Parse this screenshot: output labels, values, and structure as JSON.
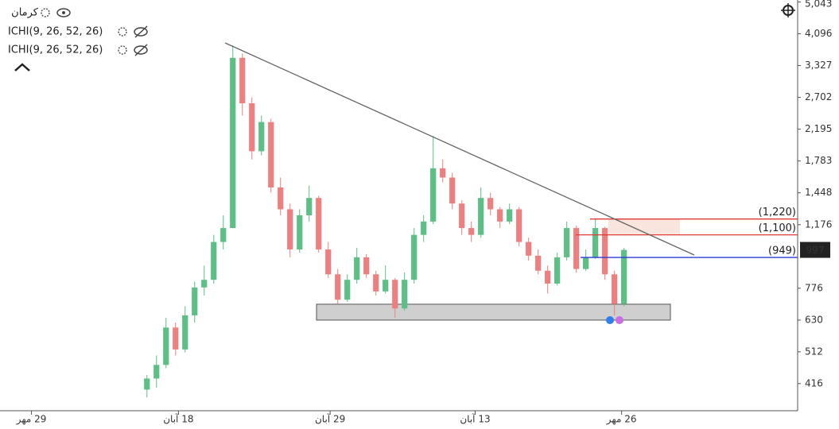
{
  "chart_data": {
    "type": "candlestick",
    "title": "کرمان",
    "indicators": [
      "ICHI(9, 26, 52, 26)",
      "ICHI(9, 26, 52, 26)"
    ],
    "log_scale": true,
    "up_color": "#5cbf85",
    "down_color": "#ef7f7f",
    "open": [
      400,
      430,
      470,
      600,
      520,
      650,
      780,
      820,
      1050,
      1150,
      3500,
      2600,
      1900,
      2300,
      1500,
      1300,
      1000,
      1250,
      1400,
      1000,
      850,
      720,
      820,
      950,
      850,
      760,
      820,
      680,
      820,
      1100,
      1200,
      1700,
      1600,
      1350,
      1150,
      1100,
      1400,
      1300,
      1200,
      1300,
      1050,
      960,
      870,
      800,
      950,
      1150,
      880,
      950,
      1150,
      850,
      700
    ],
    "high": [
      440,
      500,
      640,
      620,
      690,
      810,
      900,
      1100,
      1250,
      3800,
      3600,
      2700,
      2400,
      2350,
      1600,
      1350,
      1300,
      1520,
      1420,
      1050,
      880,
      850,
      1010,
      970,
      870,
      900,
      830,
      860,
      1150,
      1250,
      2100,
      1800,
      1650,
      1380,
      1200,
      1500,
      1450,
      1320,
      1350,
      1320,
      1080,
      1000,
      900,
      980,
      1200,
      1170,
      1000,
      1220,
      1160,
      870,
      1010
    ],
    "low": [
      380,
      405,
      460,
      500,
      510,
      620,
      740,
      800,
      1000,
      1150,
      2400,
      1800,
      1850,
      1450,
      1250,
      950,
      980,
      1200,
      980,
      830,
      700,
      710,
      800,
      830,
      740,
      750,
      640,
      670,
      800,
      1050,
      1180,
      1550,
      1300,
      1100,
      1050,
      1080,
      1250,
      1150,
      1180,
      1020,
      930,
      850,
      750,
      790,
      930,
      860,
      870,
      940,
      820,
      650,
      690
    ],
    "close": [
      430,
      470,
      600,
      520,
      650,
      780,
      820,
      1050,
      1150,
      3500,
      2600,
      1900,
      2300,
      1500,
      1300,
      1000,
      1250,
      1400,
      1000,
      850,
      720,
      820,
      950,
      850,
      760,
      820,
      680,
      820,
      1100,
      1200,
      1700,
      1600,
      1350,
      1150,
      1100,
      1400,
      1300,
      1200,
      1300,
      1050,
      960,
      870,
      800,
      950,
      1150,
      880,
      950,
      1150,
      850,
      700,
      997
    ],
    "xlim": [
      -15.4,
      68.2
    ],
    "xticks": [
      {
        "value": -12.1,
        "label": "29 مهر"
      },
      {
        "value": 3.3,
        "label": "18 آبان"
      },
      {
        "value": 19.2,
        "label": "29 آبان"
      },
      {
        "value": 34.4,
        "label": "13 آبان"
      },
      {
        "value": 49.75,
        "label": "26 مهر"
      }
    ],
    "ylim": [
      352,
      5108
    ],
    "yticks": [
      416,
      512,
      630,
      776,
      {
        "value": 1176,
        "label": "1,176"
      },
      {
        "value": 1448,
        "label": "1,448"
      },
      {
        "value": 1783,
        "label": "1,783"
      },
      {
        "value": 2195,
        "label": "2,195"
      },
      {
        "value": 2702,
        "label": "2,702"
      },
      {
        "value": 3327,
        "label": "3,327"
      },
      {
        "value": 4096,
        "label": "4,096"
      },
      {
        "value": 5043,
        "label": "5,043"
      }
    ],
    "levels": [
      {
        "value": 1220,
        "label": "(1,220)",
        "color": "#e53935"
      },
      {
        "value": 1100,
        "label": "(1,100)",
        "color": "#e53935"
      },
      {
        "value": 949,
        "label": "(949)",
        "color": "#2a3bd6"
      }
    ],
    "last_price": 997,
    "zone": [
      630,
      699
    ]
  }
}
